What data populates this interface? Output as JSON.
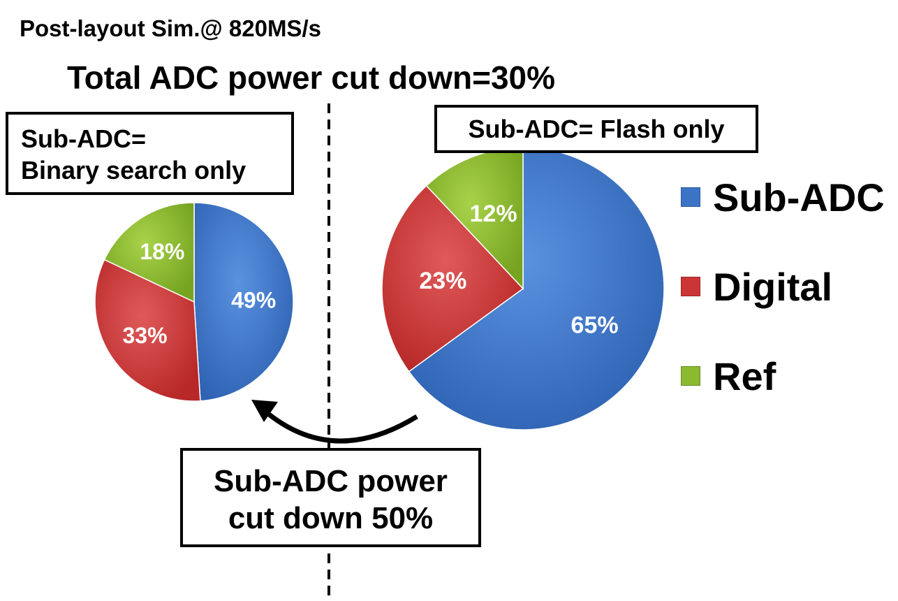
{
  "header": {
    "subtitle": "Post-layout Sim.@ 820MS/s",
    "title": "Total ADC power cut down=30%"
  },
  "boxes": {
    "left_line1": "Sub-ADC=",
    "left_line2": "Binary search only",
    "right": "Sub-ADC= Flash only",
    "bottom_line1": "Sub-ADC power",
    "bottom_line2": "cut down 50%"
  },
  "legend": [
    {
      "label": "Sub-ADC",
      "color": "#3b74c7"
    },
    {
      "label": "Digital",
      "color": "#cc3535"
    },
    {
      "label": "Ref",
      "color": "#8bba31"
    }
  ],
  "chart_data": [
    {
      "type": "pie",
      "title": "",
      "categories": [
        "Sub-ADC",
        "Digital",
        "Ref"
      ],
      "values": [
        49,
        33,
        18
      ],
      "labels": [
        "49%",
        "33%",
        "18%"
      ]
    },
    {
      "type": "pie",
      "title": "",
      "categories": [
        "Sub-ADC",
        "Digital",
        "Ref"
      ],
      "values": [
        65,
        23,
        12
      ],
      "labels": [
        "65%",
        "23%",
        "12%"
      ]
    }
  ]
}
